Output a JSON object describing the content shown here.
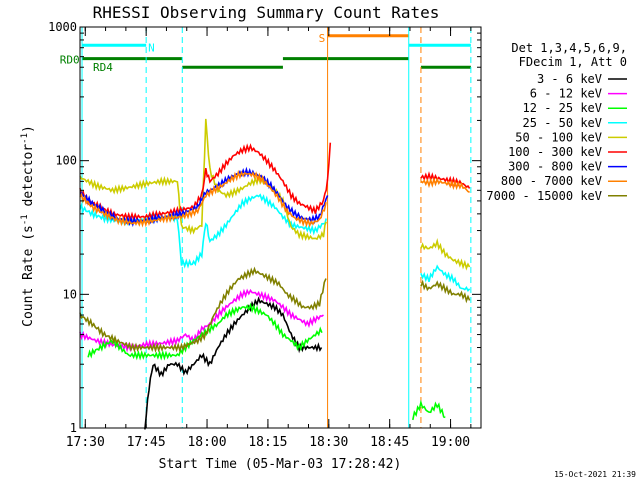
{
  "chart_data": {
    "type": "line",
    "title": "RHESSI Observing Summary Count Rates",
    "xlabel": "Start Time (05-Mar-03 17:28:42)",
    "ylabel": "Count Rate (s-1 detector-1)",
    "ylabel_parts": [
      "Count Rate (s",
      "-1",
      " detector",
      "-1",
      ")"
    ],
    "x_unit": "minutes since 17:28:42",
    "xlim": [
      "17:28:42",
      "19:07:30"
    ],
    "xlim_min": [
      0,
      98.8
    ],
    "ylim": [
      1,
      1000
    ],
    "y_scale": "log",
    "x_ticks": [
      {
        "label": "17:30",
        "t": 1.3
      },
      {
        "label": "17:45",
        "t": 16.3
      },
      {
        "label": "18:00",
        "t": 31.3
      },
      {
        "label": "18:15",
        "t": 46.3
      },
      {
        "label": "18:30",
        "t": 61.3
      },
      {
        "label": "18:45",
        "t": 76.3
      },
      {
        "label": "19:00",
        "t": 91.3
      }
    ],
    "y_ticks": [
      {
        "label": "1",
        "v": 1
      },
      {
        "label": "10",
        "v": 10
      },
      {
        "label": "100",
        "v": 100
      },
      {
        "label": "1000",
        "v": 1000
      }
    ],
    "legend_header": [
      "Det 1,3,4,5,6,9,",
      "FDecim 1, Att 0"
    ],
    "legend_position": "right",
    "timestamp": "15-Oct-2021 21:39",
    "series": [
      {
        "name": "3 - 6 keV",
        "color": "#000000",
        "points": [
          [
            16,
            1
          ],
          [
            17,
            2
          ],
          [
            18,
            3
          ],
          [
            20,
            2.5
          ],
          [
            22,
            3
          ],
          [
            24,
            3
          ],
          [
            26,
            2.6
          ],
          [
            28,
            3
          ],
          [
            30,
            3.5
          ],
          [
            32,
            3
          ],
          [
            34,
            4
          ],
          [
            36,
            5
          ],
          [
            38,
            6
          ],
          [
            40,
            7
          ],
          [
            42,
            8
          ],
          [
            44,
            9
          ],
          [
            46,
            8.5
          ],
          [
            48,
            8
          ],
          [
            50,
            7
          ],
          [
            52,
            5
          ],
          [
            54,
            4
          ],
          [
            56,
            4
          ],
          [
            58,
            4
          ],
          [
            59.5,
            4
          ]
        ]
      },
      {
        "name": "6 - 12 keV",
        "color": "#ff00ff",
        "points": [
          [
            0,
            5
          ],
          [
            4,
            4.5
          ],
          [
            8,
            4.2
          ],
          [
            12,
            4
          ],
          [
            16,
            4.2
          ],
          [
            20,
            4.3
          ],
          [
            24,
            4.5
          ],
          [
            26,
            5
          ],
          [
            28,
            4.5
          ],
          [
            30,
            5.5
          ],
          [
            32,
            6
          ],
          [
            34,
            7
          ],
          [
            36,
            8
          ],
          [
            38,
            9
          ],
          [
            40,
            10
          ],
          [
            42,
            10.5
          ],
          [
            44,
            10
          ],
          [
            46,
            9.5
          ],
          [
            48,
            9
          ],
          [
            50,
            8
          ],
          [
            52,
            7
          ],
          [
            54,
            6.5
          ],
          [
            56,
            6
          ],
          [
            58,
            6.5
          ],
          [
            60,
            7
          ]
        ]
      },
      {
        "name": "12 - 25 keV",
        "color": "#00ff00",
        "points": [
          [
            2,
            3.5
          ],
          [
            5,
            4
          ],
          [
            8,
            4.5
          ],
          [
            12,
            3.5
          ],
          [
            16,
            3.5
          ],
          [
            20,
            3.5
          ],
          [
            24,
            3.5
          ],
          [
            26,
            4
          ],
          [
            28,
            4.5
          ],
          [
            30,
            5
          ],
          [
            32,
            5.5
          ],
          [
            34,
            6
          ],
          [
            36,
            7
          ],
          [
            38,
            7.5
          ],
          [
            40,
            8
          ],
          [
            42,
            8
          ],
          [
            44,
            7.5
          ],
          [
            46,
            7
          ],
          [
            48,
            6
          ],
          [
            50,
            5
          ],
          [
            52,
            4.5
          ],
          [
            54,
            4
          ],
          [
            56,
            4.5
          ],
          [
            58,
            5
          ],
          [
            60,
            5.5
          ],
          [
            82,
            1.2
          ],
          [
            84,
            1.5
          ],
          [
            86,
            1.3
          ],
          [
            88,
            1.5
          ],
          [
            90,
            1.2
          ]
        ]
      },
      {
        "name": "25 - 50 keV",
        "color": "#00ffff",
        "points": [
          [
            0,
            45
          ],
          [
            3,
            40
          ],
          [
            6,
            37
          ],
          [
            10,
            35
          ],
          [
            14,
            36
          ],
          [
            18,
            37
          ],
          [
            22,
            38
          ],
          [
            24,
            37
          ],
          [
            25,
            17
          ],
          [
            27,
            17
          ],
          [
            28,
            17
          ],
          [
            30,
            20
          ],
          [
            31,
            35
          ],
          [
            32,
            25
          ],
          [
            34,
            28
          ],
          [
            36,
            33
          ],
          [
            38,
            40
          ],
          [
            40,
            48
          ],
          [
            42,
            52
          ],
          [
            44,
            55
          ],
          [
            46,
            50
          ],
          [
            48,
            45
          ],
          [
            50,
            38
          ],
          [
            52,
            33
          ],
          [
            54,
            32
          ],
          [
            56,
            31
          ],
          [
            58,
            30
          ],
          [
            60,
            34
          ],
          [
            61,
            36
          ],
          [
            84,
            14
          ],
          [
            86,
            13
          ],
          [
            88,
            16
          ],
          [
            90,
            14
          ],
          [
            92,
            13
          ],
          [
            94,
            11
          ],
          [
            96,
            11
          ]
        ]
      },
      {
        "name": "50 - 100 keV",
        "color": "#cccc00",
        "points": [
          [
            0,
            75
          ],
          [
            4,
            65
          ],
          [
            8,
            60
          ],
          [
            12,
            63
          ],
          [
            16,
            67
          ],
          [
            20,
            70
          ],
          [
            24,
            70
          ],
          [
            25,
            32
          ],
          [
            28,
            30
          ],
          [
            30,
            33
          ],
          [
            31,
            200
          ],
          [
            32,
            85
          ],
          [
            34,
            60
          ],
          [
            36,
            55
          ],
          [
            38,
            58
          ],
          [
            40,
            62
          ],
          [
            42,
            68
          ],
          [
            44,
            72
          ],
          [
            46,
            68
          ],
          [
            48,
            60
          ],
          [
            50,
            50
          ],
          [
            52,
            32
          ],
          [
            54,
            28
          ],
          [
            56,
            27
          ],
          [
            58,
            26
          ],
          [
            60,
            28
          ],
          [
            61,
            40
          ],
          [
            84,
            23
          ],
          [
            86,
            22
          ],
          [
            88,
            24
          ],
          [
            90,
            20
          ],
          [
            92,
            18
          ],
          [
            94,
            17
          ],
          [
            96,
            16
          ]
        ]
      },
      {
        "name": "100 - 300 keV",
        "color": "#ff0000",
        "points": [
          [
            0,
            60
          ],
          [
            2,
            50
          ],
          [
            5,
            45
          ],
          [
            8,
            40
          ],
          [
            12,
            38
          ],
          [
            16,
            38
          ],
          [
            20,
            40
          ],
          [
            24,
            42
          ],
          [
            28,
            45
          ],
          [
            30,
            55
          ],
          [
            31,
            85
          ],
          [
            32,
            70
          ],
          [
            34,
            80
          ],
          [
            36,
            95
          ],
          [
            38,
            110
          ],
          [
            40,
            120
          ],
          [
            42,
            125
          ],
          [
            44,
            115
          ],
          [
            46,
            100
          ],
          [
            48,
            85
          ],
          [
            50,
            70
          ],
          [
            52,
            55
          ],
          [
            54,
            48
          ],
          [
            56,
            45
          ],
          [
            58,
            42
          ],
          [
            60,
            50
          ],
          [
            61,
            70
          ],
          [
            62,
            190
          ],
          [
            84,
            75
          ],
          [
            86,
            76
          ],
          [
            88,
            74
          ],
          [
            90,
            72
          ],
          [
            92,
            70
          ],
          [
            94,
            68
          ],
          [
            96,
            62
          ]
        ]
      },
      {
        "name": "300 - 800 keV",
        "color": "#0000ff",
        "points": [
          [
            0,
            58
          ],
          [
            3,
            48
          ],
          [
            6,
            42
          ],
          [
            9,
            37
          ],
          [
            13,
            35
          ],
          [
            17,
            36
          ],
          [
            21,
            38
          ],
          [
            25,
            40
          ],
          [
            29,
            45
          ],
          [
            31,
            58
          ],
          [
            33,
            62
          ],
          [
            35,
            68
          ],
          [
            37,
            75
          ],
          [
            39,
            80
          ],
          [
            41,
            82
          ],
          [
            43,
            80
          ],
          [
            45,
            75
          ],
          [
            47,
            65
          ],
          [
            49,
            55
          ],
          [
            51,
            45
          ],
          [
            53,
            40
          ],
          [
            55,
            37
          ],
          [
            57,
            36
          ],
          [
            59,
            38
          ],
          [
            61,
            55
          ]
        ]
      },
      {
        "name": "800 - 7000 keV",
        "color": "#ff8000",
        "points": [
          [
            0,
            55
          ],
          [
            3,
            45
          ],
          [
            6,
            40
          ],
          [
            9,
            36
          ],
          [
            13,
            34
          ],
          [
            17,
            35
          ],
          [
            21,
            37
          ],
          [
            25,
            38
          ],
          [
            29,
            42
          ],
          [
            31,
            55
          ],
          [
            33,
            60
          ],
          [
            35,
            65
          ],
          [
            37,
            72
          ],
          [
            39,
            78
          ],
          [
            41,
            80
          ],
          [
            43,
            78
          ],
          [
            45,
            72
          ],
          [
            47,
            62
          ],
          [
            49,
            52
          ],
          [
            51,
            42
          ],
          [
            53,
            37
          ],
          [
            55,
            35
          ],
          [
            57,
            34
          ],
          [
            59,
            36
          ],
          [
            61,
            50
          ],
          [
            84,
            70
          ],
          [
            86,
            68
          ],
          [
            88,
            70
          ],
          [
            90,
            68
          ],
          [
            92,
            66
          ],
          [
            94,
            65
          ],
          [
            96,
            58
          ]
        ]
      },
      {
        "name": "7000 - 15000 keV",
        "color": "#808000",
        "points": [
          [
            0,
            7
          ],
          [
            3,
            6
          ],
          [
            6,
            5
          ],
          [
            9,
            4.5
          ],
          [
            13,
            4
          ],
          [
            17,
            4
          ],
          [
            21,
            4
          ],
          [
            25,
            4
          ],
          [
            29,
            4.5
          ],
          [
            31,
            5
          ],
          [
            33,
            7
          ],
          [
            35,
            9
          ],
          [
            37,
            11
          ],
          [
            39,
            13
          ],
          [
            41,
            14
          ],
          [
            43,
            15
          ],
          [
            45,
            14
          ],
          [
            47,
            13
          ],
          [
            49,
            12
          ],
          [
            51,
            10
          ],
          [
            53,
            9
          ],
          [
            55,
            8
          ],
          [
            57,
            8
          ],
          [
            59,
            8.5
          ],
          [
            61,
            15
          ],
          [
            84,
            12
          ],
          [
            86,
            11
          ],
          [
            88,
            12
          ],
          [
            90,
            11
          ],
          [
            92,
            10
          ],
          [
            94,
            10
          ],
          [
            96,
            9
          ]
        ]
      }
    ],
    "annotations": {
      "labels": [
        {
          "text": "N",
          "t": 16.8,
          "v": 700,
          "color": "#00ffff"
        },
        {
          "text": "S",
          "t": 58.8,
          "v": 830,
          "color": "#ff8000"
        },
        {
          "text": "RD0",
          "t": -5.0,
          "v": 570,
          "color": "#008000"
        },
        {
          "text": "RD4",
          "t": 3.2,
          "v": 500,
          "color": "#008000"
        }
      ],
      "vertical_lines": [
        {
          "t": 0.5,
          "color": "#00ffff",
          "dashed": false
        },
        {
          "t": 16.3,
          "color": "#00ffff",
          "dashed": true
        },
        {
          "t": 25.2,
          "color": "#00ffff",
          "dashed": true
        },
        {
          "t": 61.0,
          "color": "#ff8000",
          "dashed": false
        },
        {
          "t": 81.0,
          "color": "#00ffff",
          "dashed": false
        },
        {
          "t": 84.0,
          "color": "#ff8000",
          "dashed": true
        },
        {
          "t": 96.3,
          "color": "#00ffff",
          "dashed": true
        }
      ],
      "horizontal_bars": [
        {
          "t0": 0.5,
          "t1": 16.3,
          "v": 730,
          "color": "#00ffff"
        },
        {
          "t0": 81.0,
          "t1": 96.3,
          "v": 730,
          "color": "#00ffff"
        },
        {
          "t0": 61.0,
          "t1": 81.0,
          "v": 860,
          "color": "#ff8000"
        },
        {
          "t0": 0.5,
          "t1": 25.2,
          "v": 580,
          "color": "#008000"
        },
        {
          "t0": 25.2,
          "t1": 50.0,
          "v": 500,
          "color": "#008000"
        },
        {
          "t0": 50.0,
          "t1": 81.0,
          "v": 580,
          "color": "#008000"
        },
        {
          "t0": 84.0,
          "t1": 96.3,
          "v": 500,
          "color": "#008000"
        }
      ]
    }
  }
}
